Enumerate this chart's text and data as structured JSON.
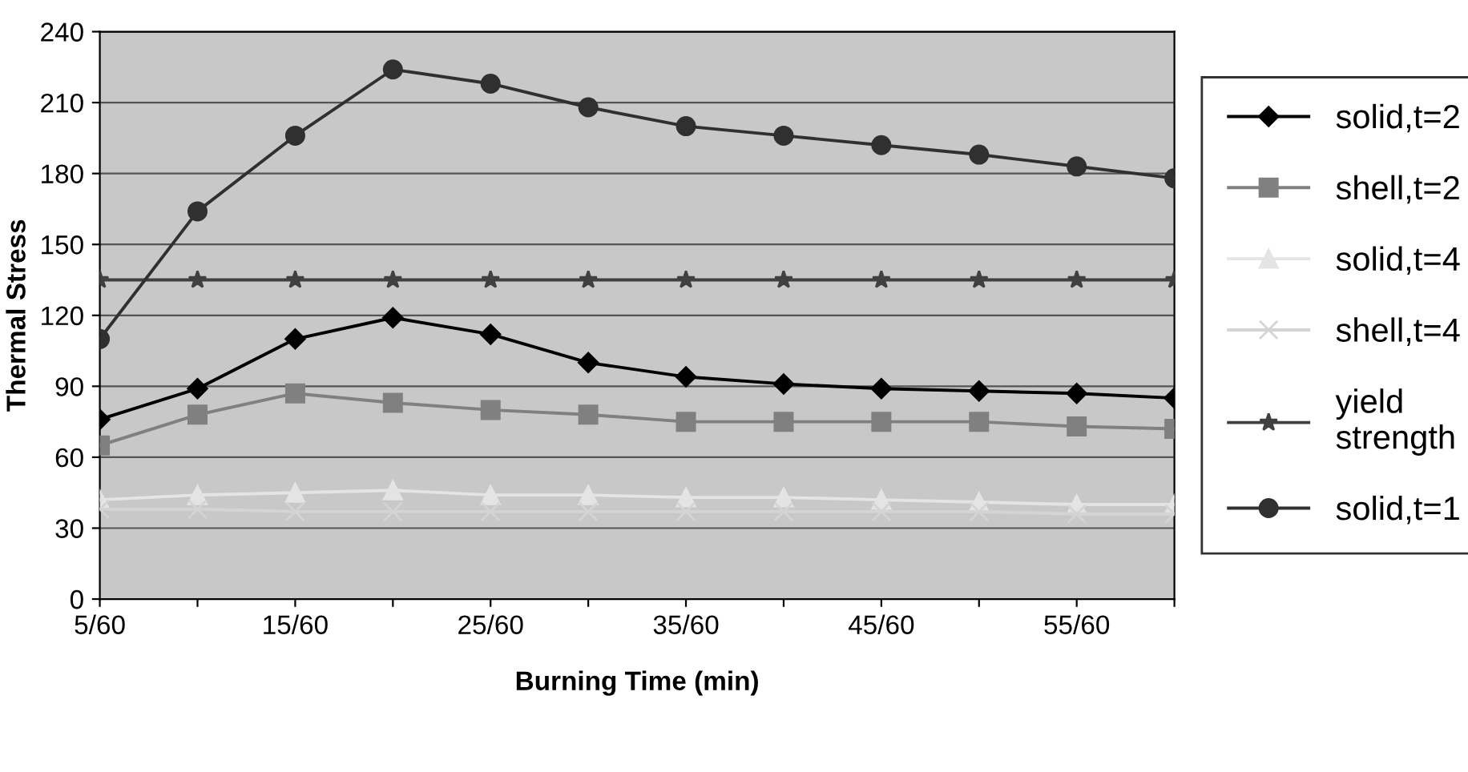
{
  "chart_data": {
    "type": "line",
    "xlabel": "Burning Time (min)",
    "ylabel": "Thermal Stress",
    "categories": [
      "5/60",
      null,
      "15/60",
      null,
      "25/60",
      null,
      "35/60",
      null,
      "45/60",
      null,
      "55/60",
      null
    ],
    "ylim": [
      0,
      240
    ],
    "yticks": [
      0,
      30,
      60,
      90,
      120,
      150,
      180,
      210,
      240
    ],
    "grid": "y",
    "legend": "right",
    "series": [
      {
        "name": "solid,t=2",
        "color": "#000000",
        "marker": "diamond",
        "values": [
          76,
          89,
          110,
          119,
          112,
          100,
          94,
          91,
          89,
          88,
          87,
          85
        ]
      },
      {
        "name": "shell,t=2",
        "color": "#808080",
        "marker": "square",
        "values": [
          65,
          78,
          87,
          83,
          80,
          78,
          75,
          75,
          75,
          75,
          73,
          72
        ]
      },
      {
        "name": "solid,t=4",
        "color": "#e4e4e4",
        "marker": "triangle",
        "values": [
          42,
          44,
          45,
          46,
          44,
          44,
          43,
          43,
          42,
          41,
          40,
          40
        ]
      },
      {
        "name": "shell,t=4",
        "color": "#d4d4d4",
        "marker": "cross",
        "values": [
          38,
          38,
          37,
          37,
          37,
          37,
          37,
          37,
          37,
          37,
          36,
          36
        ]
      },
      {
        "name": "yield strength",
        "color": "#404040",
        "marker": "star",
        "values": [
          135,
          135,
          135,
          135,
          135,
          135,
          135,
          135,
          135,
          135,
          135,
          135
        ]
      },
      {
        "name": "solid,t=1",
        "color": "#303030",
        "marker": "circle",
        "values": [
          110,
          164,
          196,
          224,
          218,
          208,
          200,
          196,
          192,
          188,
          183,
          178
        ]
      }
    ]
  }
}
